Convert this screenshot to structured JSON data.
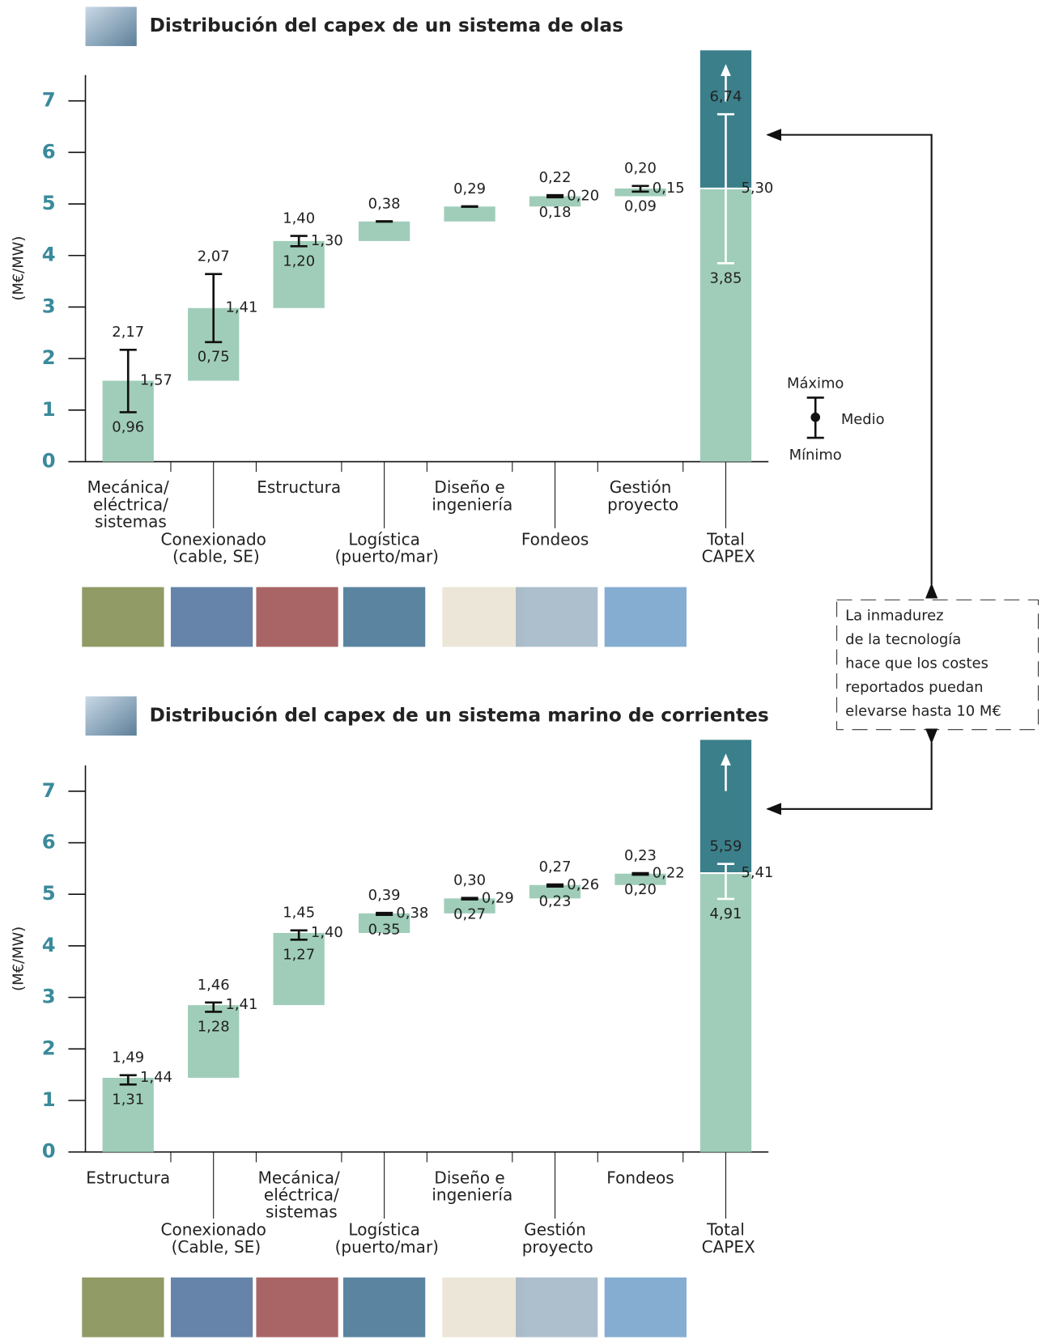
{
  "chart_data": [
    {
      "type": "waterfall",
      "title": "Distribución del capex de un sistema de olas",
      "y_label": "(M€/MW)",
      "categories": [
        "Mecánica/\neléctrica/\nsistemas",
        "Conexionado\n(cable, SE)",
        "Estructura",
        "Logística\n(puerto/mar)",
        "Diseño e\ningeniería",
        "Fondeos",
        "Gestión\nproyecto",
        "Total\nCAPEX"
      ],
      "series": [
        {
          "name": "Máximo",
          "values": [
            2.17,
            2.07,
            1.4,
            null,
            null,
            0.22,
            0.2,
            6.74
          ],
          "value_labels": [
            "2,17",
            "2,07",
            "1,40",
            null,
            null,
            "0,22",
            "0,20",
            "6,74"
          ]
        },
        {
          "name": "Medio",
          "values": [
            1.57,
            1.41,
            1.3,
            0.38,
            0.29,
            0.2,
            0.15,
            5.3
          ],
          "value_labels": [
            "1,57",
            "1,41",
            "1,30",
            "0,38",
            "0,29",
            "0,20",
            "0,15",
            "5,30"
          ]
        },
        {
          "name": "Mínimo",
          "values": [
            0.96,
            0.75,
            1.2,
            null,
            null,
            0.18,
            0.09,
            3.85
          ],
          "value_labels": [
            "0,96",
            "0,75",
            "1,20",
            null,
            null,
            "0,18",
            "0,09",
            "3,85"
          ]
        }
      ],
      "color": "#9fcdb9",
      "total_color": "#3b7f8b",
      "ylim": [
        0,
        7.5
      ],
      "yticks": [
        0,
        1,
        2,
        3,
        4,
        5,
        6,
        7
      ]
    },
    {
      "type": "waterfall",
      "title": "Distribución del capex de un sistema marino de corrientes",
      "y_label": "(M€/MW)",
      "categories": [
        "Estructura",
        "Conexionado\n(Cable, SE)",
        "Mecánica/\neléctrica/\nsistemas",
        "Logística\n(puerto/mar)",
        "Diseño e\ningeniería",
        "Gestión\nproyecto",
        "Fondeos",
        "Total\nCAPEX"
      ],
      "series": [
        {
          "name": "Máximo",
          "values": [
            1.49,
            1.46,
            1.45,
            0.39,
            0.3,
            0.27,
            0.23,
            5.59
          ],
          "value_labels": [
            "1,49",
            "1,46",
            "1,45",
            "0,39",
            "0,30",
            "0,27",
            "0,23",
            "5,59"
          ]
        },
        {
          "name": "Medio",
          "values": [
            1.44,
            1.41,
            1.4,
            0.38,
            0.29,
            0.26,
            0.22,
            5.41
          ],
          "value_labels": [
            "1,44",
            "1,41",
            "1,40",
            "0,38",
            "0,29",
            "0,26",
            "0,22",
            "5,41"
          ]
        },
        {
          "name": "Mínimo",
          "values": [
            1.31,
            1.28,
            1.27,
            0.35,
            0.27,
            0.23,
            0.2,
            4.91
          ],
          "value_labels": [
            "1,31",
            "1,28",
            "1,27",
            "0,35",
            "0,27",
            "0,23",
            "0,20",
            "4,91"
          ]
        }
      ],
      "color": "#9fcdb9",
      "total_color": "#3b7f8b",
      "ylim": [
        0,
        7.5
      ],
      "yticks": [
        0,
        1,
        2,
        3,
        4,
        5,
        6,
        7
      ]
    }
  ],
  "note": [
    "La inmadurez",
    "de la tecnología",
    "hace que los costes",
    "reportados puedan",
    "elevarse hasta 10 M€"
  ]
}
